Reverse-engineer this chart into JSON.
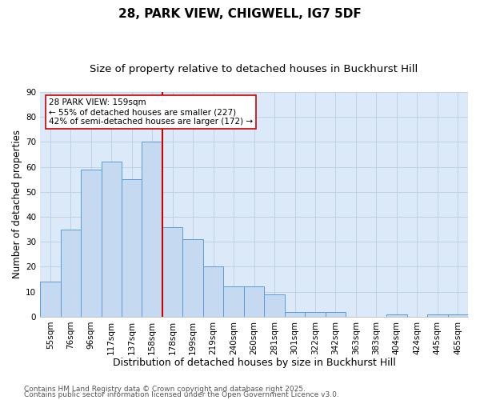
{
  "title1": "28, PARK VIEW, CHIGWELL, IG7 5DF",
  "title2": "Size of property relative to detached houses in Buckhurst Hill",
  "xlabel": "Distribution of detached houses by size in Buckhurst Hill",
  "ylabel": "Number of detached properties",
  "categories": [
    "55sqm",
    "76sqm",
    "96sqm",
    "117sqm",
    "137sqm",
    "158sqm",
    "178sqm",
    "199sqm",
    "219sqm",
    "240sqm",
    "260sqm",
    "281sqm",
    "301sqm",
    "322sqm",
    "342sqm",
    "363sqm",
    "383sqm",
    "404sqm",
    "424sqm",
    "445sqm",
    "465sqm"
  ],
  "values": [
    14,
    35,
    59,
    62,
    55,
    70,
    36,
    31,
    20,
    12,
    12,
    9,
    2,
    2,
    2,
    0,
    0,
    1,
    0,
    1,
    1
  ],
  "bar_color": "#c5d9f1",
  "bar_edge_color": "#5b9bd5",
  "grid_color": "#b8cfe8",
  "vline_color": "#cc0000",
  "annotation_text": "28 PARK VIEW: 159sqm\n← 55% of detached houses are smaller (227)\n42% of semi-detached houses are larger (172) →",
  "annotation_box_color": "#ffffff",
  "annotation_border_color": "#cc0000",
  "ylim": [
    0,
    90
  ],
  "yticks": [
    0,
    10,
    20,
    30,
    40,
    50,
    60,
    70,
    80,
    90
  ],
  "footnote1": "Contains HM Land Registry data © Crown copyright and database right 2025.",
  "footnote2": "Contains public sector information licensed under the Open Government Licence v3.0.",
  "bg_color": "#dce9f8",
  "fig_bg_color": "#ffffff",
  "title1_fontsize": 11,
  "title2_fontsize": 9.5,
  "xlabel_fontsize": 9,
  "ylabel_fontsize": 8.5,
  "tick_fontsize": 7.5,
  "annot_fontsize": 7.5,
  "footnote_fontsize": 6.5
}
